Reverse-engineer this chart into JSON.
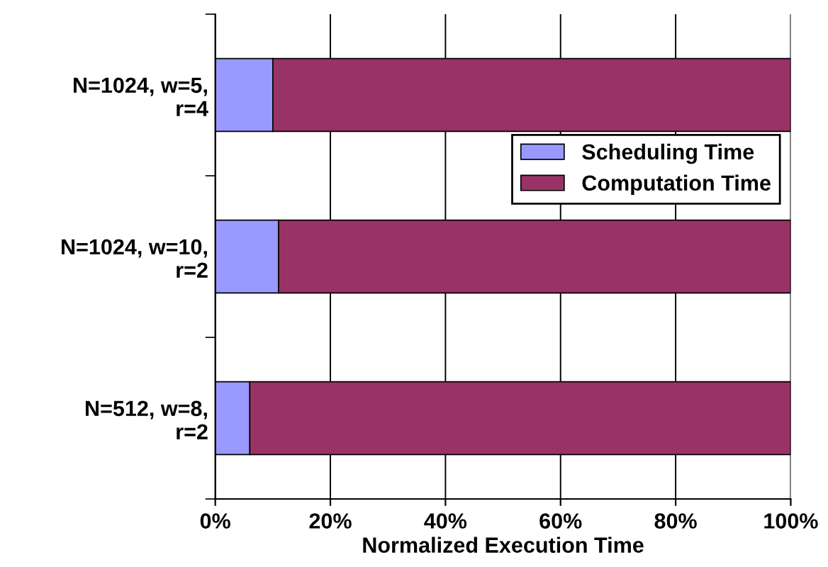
{
  "chart_data": {
    "type": "bar",
    "orientation": "horizontal",
    "stacked": true,
    "xlabel": "Normalized Execution Time",
    "categories": [
      "N=1024, w=5,\nr=4",
      "N=1024, w=10,\nr=2",
      "N=512, w=8,\nr=2"
    ],
    "series": [
      {
        "name": "Scheduling Time",
        "color": "#9999ff",
        "values": [
          10,
          11,
          6
        ]
      },
      {
        "name": "Computation Time",
        "color": "#993366",
        "values": [
          90,
          89,
          94
        ]
      }
    ],
    "xlim": [
      0,
      100
    ],
    "xticks": [
      {
        "value": 0,
        "label": "0%"
      },
      {
        "value": 20,
        "label": "20%"
      },
      {
        "value": 40,
        "label": "40%"
      },
      {
        "value": 60,
        "label": "60%"
      },
      {
        "value": 80,
        "label": "80%"
      },
      {
        "value": 100,
        "label": "100%"
      }
    ],
    "grid": "x",
    "legend": "center right"
  }
}
